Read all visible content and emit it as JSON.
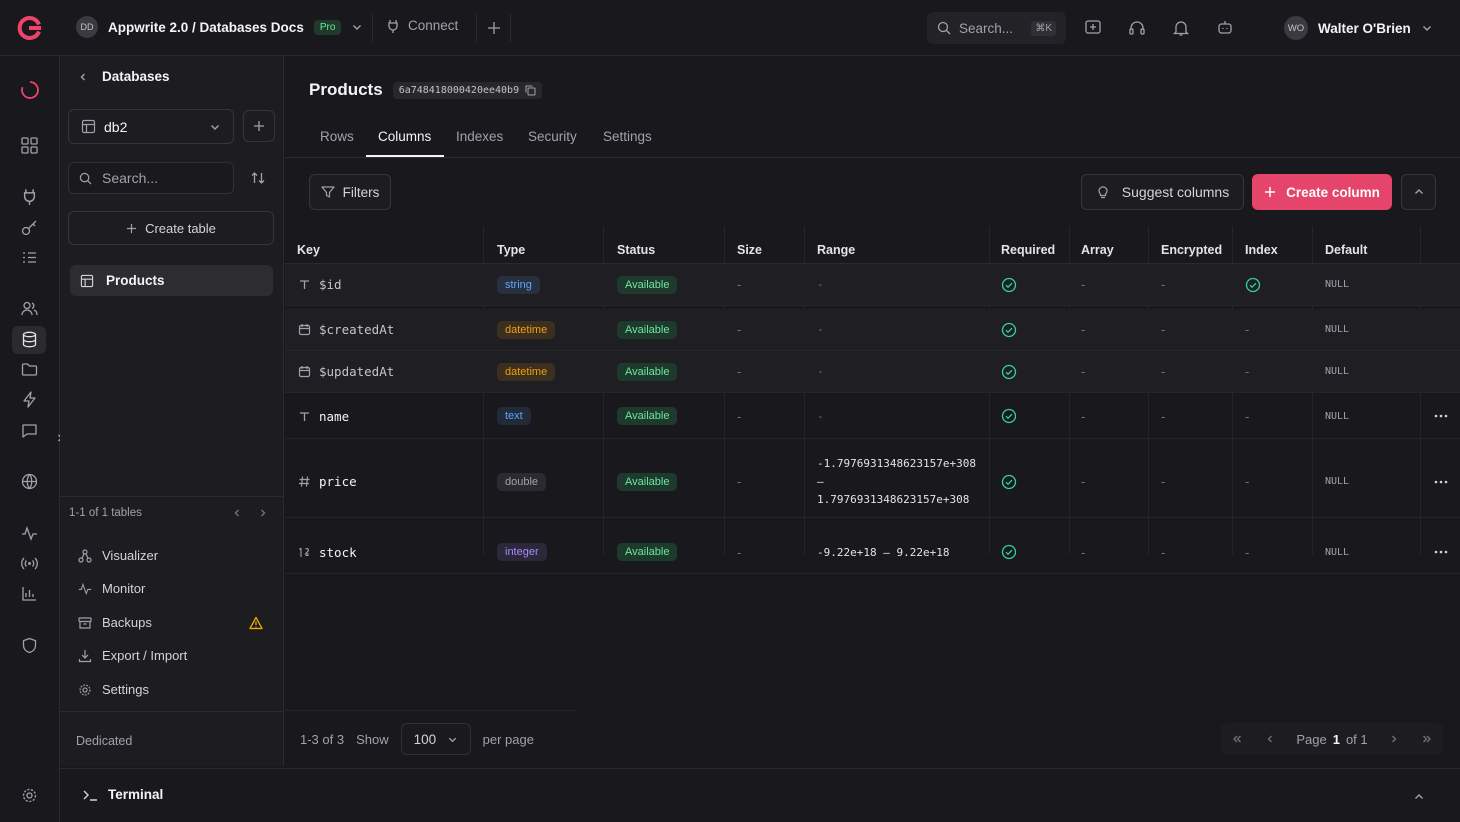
{
  "topbar": {
    "project_avatar": "DD",
    "project_name": "Appwrite 2.0 / Databases Docs",
    "plan_badge": "Pro",
    "connect_label": "Connect",
    "search_placeholder": "Search...",
    "search_shortcut": "⌘K",
    "user_avatar": "WO",
    "user_name": "Walter O'Brien"
  },
  "sidebar": {
    "back_label": "Databases",
    "database_select": "db2",
    "search_placeholder": "Search...",
    "create_table_label": "Create table",
    "tables": [
      "Products"
    ],
    "pagination_label": "1-1 of 1 tables",
    "links": [
      {
        "label": "Visualizer",
        "icon": "visualizer-icon"
      },
      {
        "label": "Monitor",
        "icon": "monitor-icon"
      },
      {
        "label": "Backups",
        "icon": "backups-icon",
        "warning": true
      },
      {
        "label": "Export / Import",
        "icon": "export-import-icon"
      },
      {
        "label": "Settings",
        "icon": "gear-icon"
      }
    ],
    "footer_label": "Dedicated"
  },
  "page": {
    "title": "Products",
    "id": "6a748418000420ee40b9",
    "tabs": [
      "Rows",
      "Columns",
      "Indexes",
      "Security",
      "Settings"
    ],
    "active_tab": "Columns"
  },
  "toolbar": {
    "filters_label": "Filters",
    "suggest_label": "Suggest columns",
    "create_label": "Create column"
  },
  "table": {
    "headers": [
      "Key",
      "Type",
      "Status",
      "Size",
      "Range",
      "Required",
      "Array",
      "Encrypted",
      "Index",
      "Default"
    ],
    "rows": [
      {
        "key": "$id",
        "icon": "text-type-icon",
        "type": "string",
        "type_color": "#60a5fa",
        "status": "Available",
        "size": "-",
        "range": "-",
        "required": true,
        "array": "-",
        "encrypted": "-",
        "index": true,
        "default": "NULL",
        "system": true
      },
      {
        "key": "$createdAt",
        "icon": "calendar-icon",
        "type": "datetime",
        "type_color": "#f59e0b",
        "status": "Available",
        "size": "-",
        "range": "-",
        "required": true,
        "array": "-",
        "encrypted": "-",
        "index": "-",
        "default": "NULL",
        "system": true
      },
      {
        "key": "$updatedAt",
        "icon": "calendar-icon",
        "type": "datetime",
        "type_color": "#f59e0b",
        "status": "Available",
        "size": "-",
        "range": "-",
        "required": true,
        "array": "-",
        "encrypted": "-",
        "index": "-",
        "default": "NULL",
        "system": true
      },
      {
        "key": "name",
        "icon": "text-type-icon",
        "type": "text",
        "type_color": "#60a5fa",
        "status": "Available",
        "size": "-",
        "range": "-",
        "required": true,
        "array": "-",
        "encrypted": "-",
        "index": "-",
        "default": "NULL",
        "system": false
      },
      {
        "key": "price",
        "icon": "hash-icon",
        "type": "double",
        "type_color": "#a1a1aa",
        "status": "Available",
        "size": "-",
        "range_lines": [
          "-1.7976931348623157e+308",
          "–",
          "1.7976931348623157e+308"
        ],
        "required": true,
        "array": "-",
        "encrypted": "-",
        "index": "-",
        "default": "NULL",
        "system": false
      },
      {
        "key": "stock",
        "icon": "integer-icon",
        "type": "integer",
        "type_color": "#a78bfa",
        "status": "Available",
        "size": "-",
        "range": "-9.22e+18 – 9.22e+18",
        "required": true,
        "array": "-",
        "encrypted": "-",
        "index": "-",
        "default": "NULL",
        "system": false
      }
    ]
  },
  "footer": {
    "count_label": "1-3 of 3",
    "show_label": "Show",
    "per_page_value": "100",
    "per_page_label": "per page",
    "page_label": "Page",
    "page_current": "1",
    "page_of": "of 1"
  },
  "terminal": {
    "label": "Terminal"
  },
  "colors": {
    "accent": "#e5456a",
    "success": "#34d399",
    "bg": "#19191d"
  }
}
